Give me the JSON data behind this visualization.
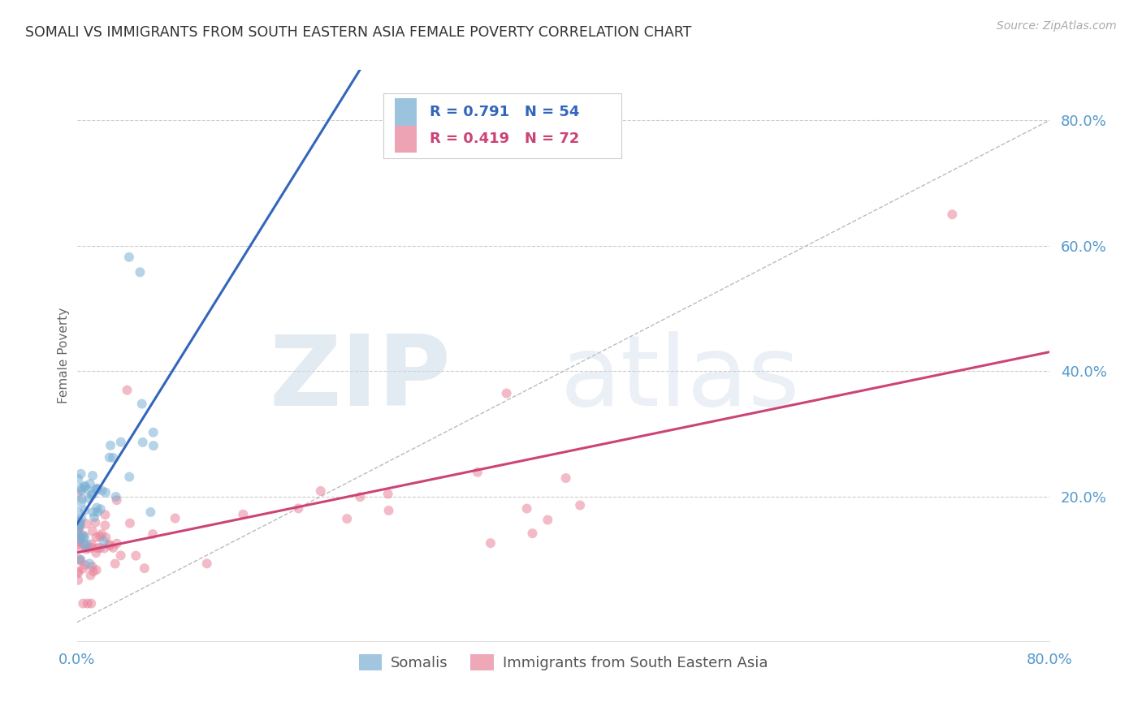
{
  "title": "SOMALI VS IMMIGRANTS FROM SOUTH EASTERN ASIA FEMALE POVERTY CORRELATION CHART",
  "source": "Source: ZipAtlas.com",
  "ylabel": "Female Poverty",
  "right_yticks": [
    "80.0%",
    "60.0%",
    "40.0%",
    "20.0%"
  ],
  "right_ytick_vals": [
    0.8,
    0.6,
    0.4,
    0.2
  ],
  "somali_color": "#7bafd4",
  "sea_color": "#e8849a",
  "somali_alpha": 0.55,
  "sea_alpha": 0.55,
  "marker_size": 75,
  "bg_color": "#ffffff",
  "grid_color": "#cccccc",
  "title_color": "#333333",
  "axis_color": "#5599cc",
  "source_color": "#aaaaaa",
  "blue_line_color": "#3366bb",
  "pink_line_color": "#cc4477",
  "diag_color": "#bbbbbb",
  "legend_R1": "R = 0.791",
  "legend_N1": "N = 54",
  "legend_R2": "R = 0.419",
  "legend_N2": "N = 72",
  "legend_color1": "#3366bb",
  "legend_color2": "#cc4477",
  "watermark_zip_color": "#cddbe8",
  "watermark_atlas_color": "#c8d8e8"
}
